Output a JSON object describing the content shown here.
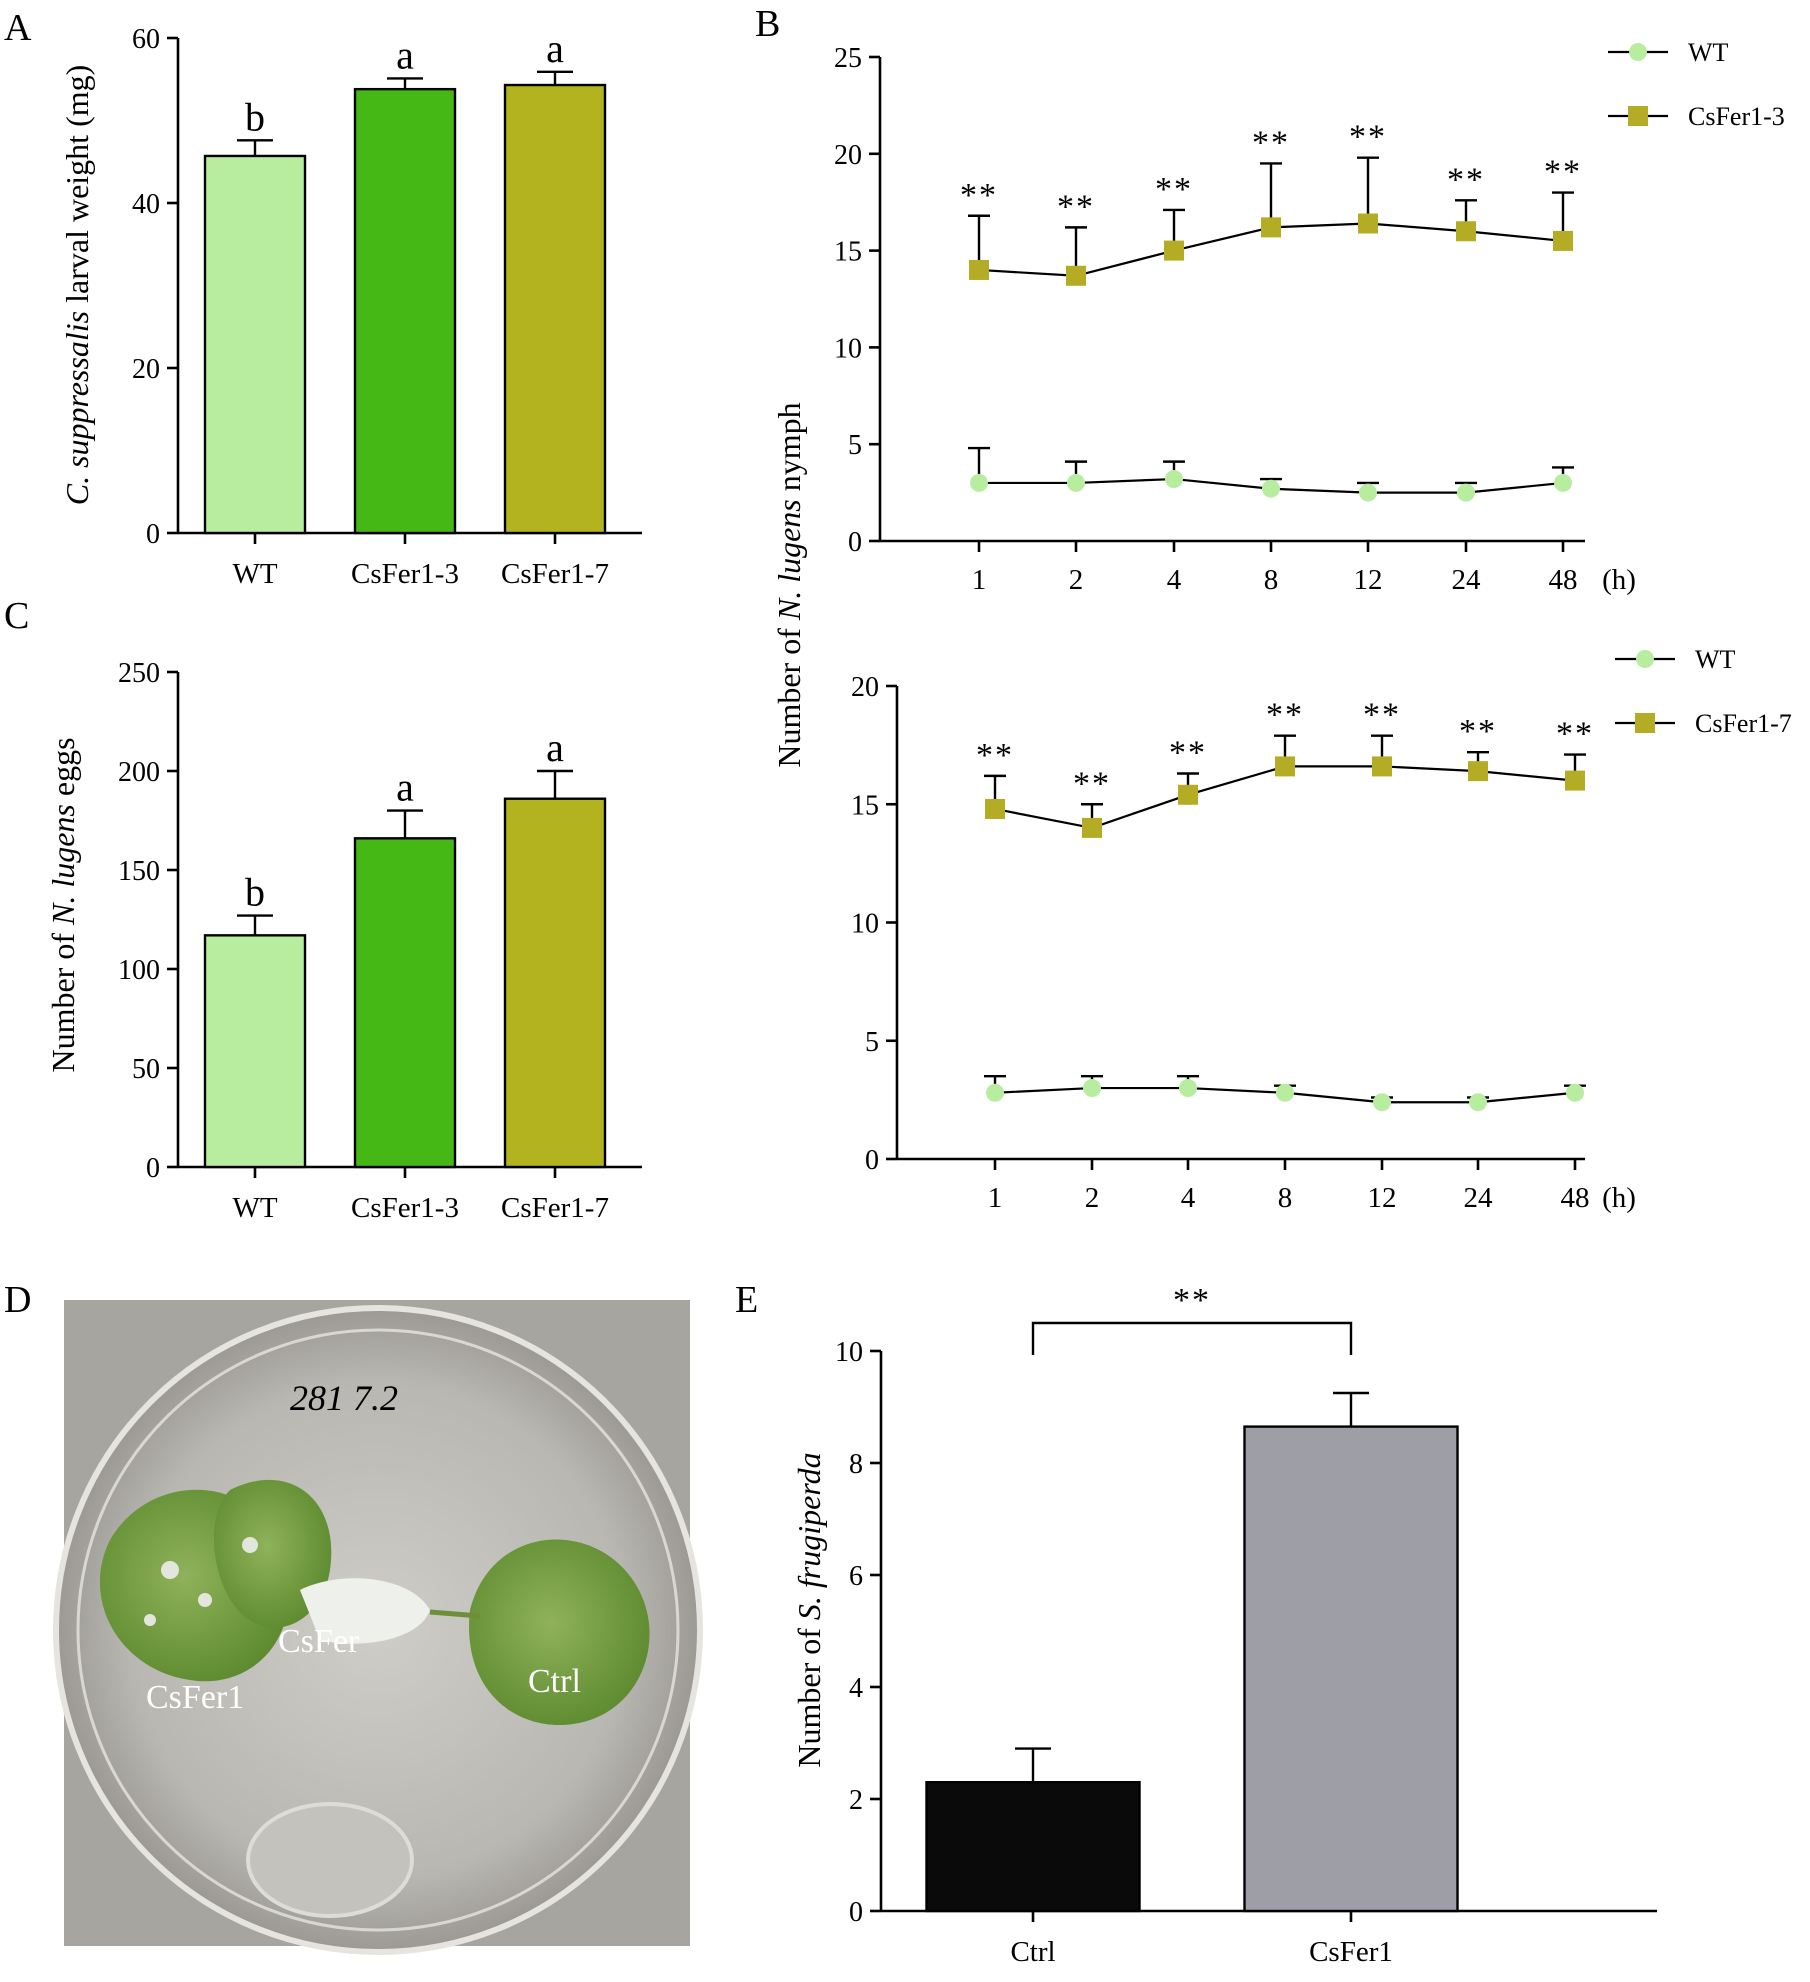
{
  "panels": {
    "A": "A",
    "B": "B",
    "C": "C",
    "D": "D",
    "E": "E"
  },
  "chart_data": [
    {
      "id": "A",
      "type": "bar",
      "ylabel_italic": "C. suppressalis",
      "ylabel_rest": " larval weight (mg)",
      "categories": [
        "WT",
        "CsFer1-3",
        "CsFer1-7"
      ],
      "values": [
        45.7,
        53.8,
        54.3
      ],
      "errors": [
        1.9,
        1.3,
        1.6
      ],
      "letters": [
        "b",
        "a",
        "a"
      ],
      "colors": [
        "#b8eda0",
        "#46b816",
        "#b3b21f"
      ],
      "ylim": [
        0,
        60
      ],
      "yticks": [
        "0",
        "20",
        "40",
        "60"
      ]
    },
    {
      "id": "C",
      "type": "bar",
      "ylabel_pre": "Number of ",
      "ylabel_italic": "N. lugens",
      "ylabel_rest": " eggs",
      "categories": [
        "WT",
        "CsFer1-3",
        "CsFer1-7"
      ],
      "values": [
        117,
        166,
        186
      ],
      "errors": [
        10,
        14,
        14
      ],
      "letters": [
        "b",
        "a",
        "a"
      ],
      "colors": [
        "#b8eda0",
        "#46b816",
        "#b3b21f"
      ],
      "ylim": [
        0,
        250
      ],
      "yticks": [
        "0",
        "50",
        "100",
        "150",
        "200",
        "250"
      ]
    },
    {
      "id": "B-top",
      "type": "line",
      "x": [
        "1",
        "2",
        "4",
        "8",
        "12",
        "24",
        "48"
      ],
      "xunit": "(h)",
      "ylim": [
        0,
        25
      ],
      "yticks": [
        "0",
        "5",
        "10",
        "15",
        "20",
        "25"
      ],
      "stars": "**",
      "series": [
        {
          "name": "WT",
          "values": [
            3.0,
            3.0,
            3.2,
            2.7,
            2.5,
            2.5,
            3.0
          ],
          "errors": [
            1.8,
            1.1,
            0.9,
            0.5,
            0.5,
            0.5,
            0.8
          ],
          "color": "#b8eda0",
          "marker": "circle"
        },
        {
          "name": "CsFer1-3",
          "values": [
            14.0,
            13.7,
            15.0,
            16.2,
            16.4,
            16.0,
            15.5
          ],
          "errors": [
            2.8,
            2.5,
            2.1,
            3.3,
            3.4,
            1.6,
            2.5
          ],
          "color": "#b3ac24",
          "marker": "square"
        }
      ]
    },
    {
      "id": "B-bottom",
      "type": "line",
      "x": [
        "1",
        "2",
        "4",
        "8",
        "12",
        "24",
        "48"
      ],
      "xunit": "(h)",
      "ylim": [
        0,
        20
      ],
      "yticks": [
        "0",
        "5",
        "10",
        "15",
        "20"
      ],
      "stars": "**",
      "series": [
        {
          "name": "WT",
          "values": [
            2.8,
            3.0,
            3.0,
            2.8,
            2.4,
            2.4,
            2.8
          ],
          "errors": [
            0.7,
            0.5,
            0.5,
            0.3,
            0.2,
            0.2,
            0.3
          ],
          "color": "#b8eda0",
          "marker": "circle"
        },
        {
          "name": "CsFer1-7",
          "values": [
            14.8,
            14.0,
            15.4,
            16.6,
            16.6,
            16.4,
            16.0
          ],
          "errors": [
            1.4,
            1.0,
            0.9,
            1.3,
            1.3,
            0.8,
            1.1
          ],
          "color": "#b3ac24",
          "marker": "square"
        }
      ]
    },
    {
      "id": "E",
      "type": "bar",
      "ylabel_pre": "Number of ",
      "ylabel_italic": "S. frugiperda",
      "categories": [
        "Ctrl",
        "CsFer1"
      ],
      "values": [
        2.3,
        8.65
      ],
      "errors": [
        0.6,
        0.6
      ],
      "colors": [
        "#0a0a0a",
        "#9e9ea6"
      ],
      "ylim": [
        0,
        10
      ],
      "yticks": [
        "0",
        "2",
        "4",
        "6",
        "8",
        "10"
      ],
      "significance": "**"
    }
  ],
  "B_shared_ylabel_pre": "Number of ",
  "B_shared_ylabel_italic": "N. lugens",
  "B_shared_ylabel_rest": " nymph",
  "photo": {
    "handwriting": "281  7.2",
    "labels": [
      "CsFer",
      "CsFer1",
      "Ctrl"
    ]
  }
}
